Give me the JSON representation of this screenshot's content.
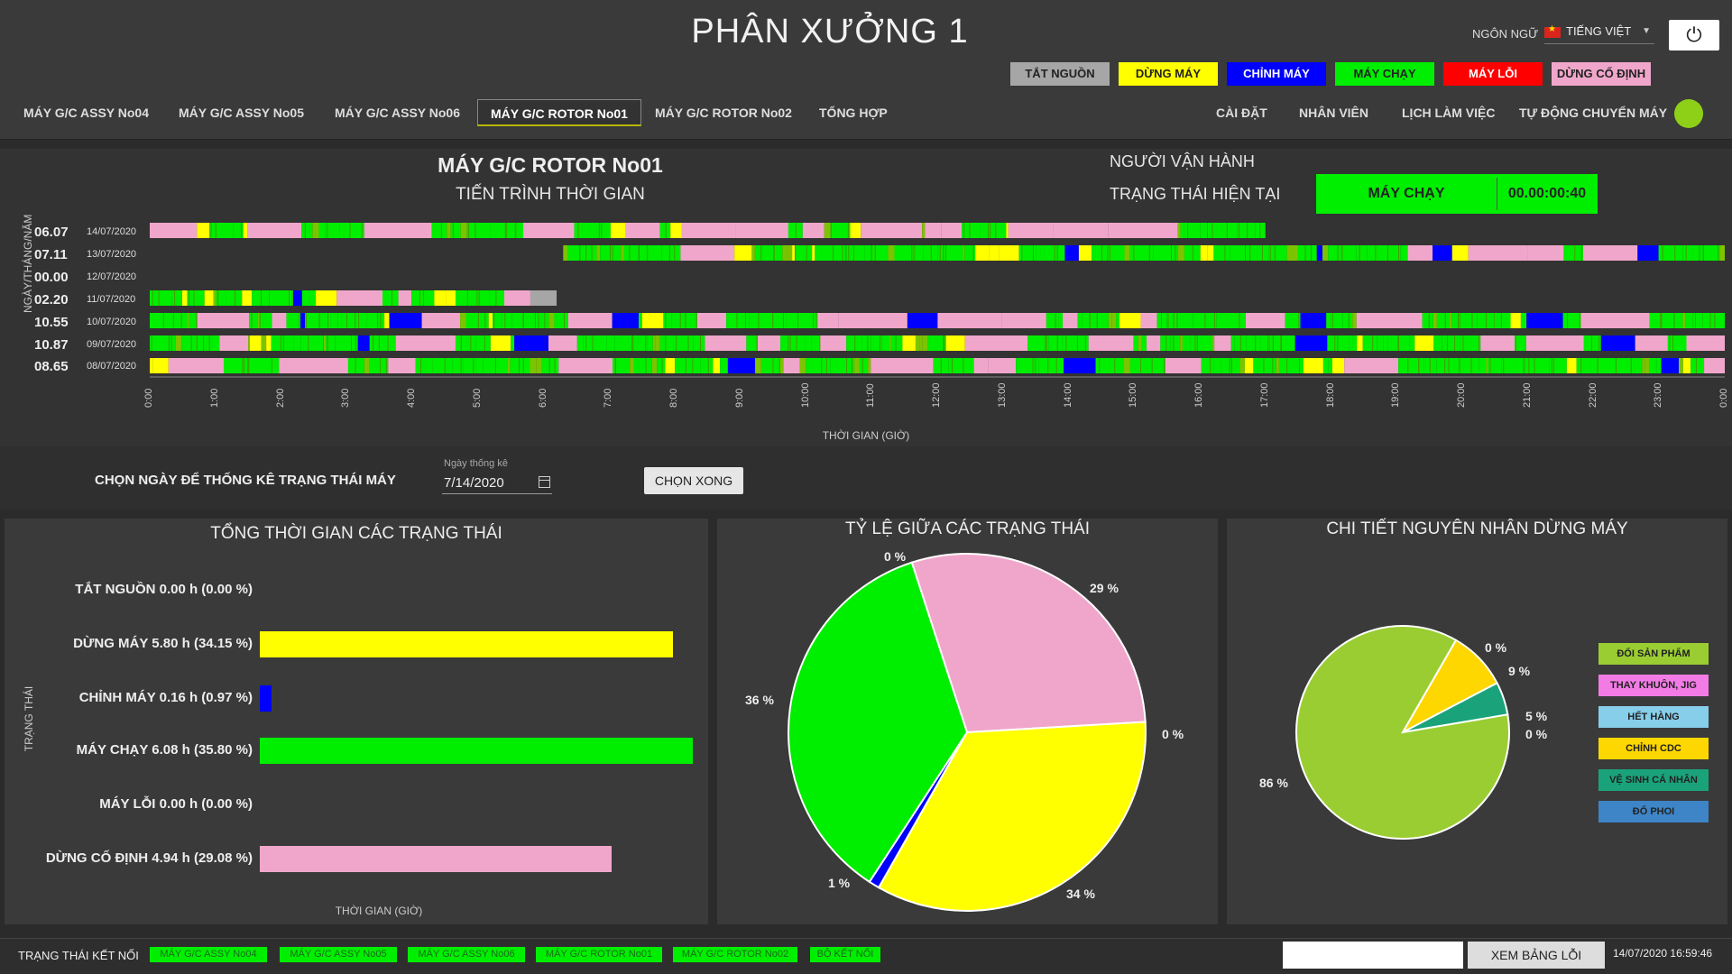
{
  "header": {
    "title": "PHÂN XƯỞNG 1",
    "language_label": "NGÔN NGỮ",
    "language_value": "TIẾNG VIỆT"
  },
  "legend": [
    {
      "label": "TẮT NGUỒN",
      "color": "#a6a6a6",
      "text_color": "#222222"
    },
    {
      "label": "DỪNG MÁY",
      "color": "#ffff00",
      "text_color": "#222222"
    },
    {
      "label": "CHỈNH MÁY",
      "color": "#0000ff",
      "text_color": "#ffffff"
    },
    {
      "label": "MÁY CHẠY",
      "color": "#00ee00",
      "text_color": "#222222"
    },
    {
      "label": "MÁY LỖI",
      "color": "#ff0000",
      "text_color": "#ffffff"
    },
    {
      "label": "DỪNG CỐ ĐỊNH",
      "color": "#f0a6ca",
      "text_color": "#222222"
    }
  ],
  "tabs": [
    {
      "label": "MÁY G/C ASSY No04",
      "active": false
    },
    {
      "label": "MÁY G/C ASSY No05",
      "active": false
    },
    {
      "label": "MÁY G/C ASSY No06",
      "active": false
    },
    {
      "label": "MÁY G/C ROTOR No01",
      "active": true
    },
    {
      "label": "MÁY G/C ROTOR No02",
      "active": false
    },
    {
      "label": "TỔNG HỢP",
      "active": false
    }
  ],
  "nav_right": [
    "CÀI ĐẶT",
    "NHÂN VIÊN",
    "LỊCH LÀM VIỆC",
    "TỰ ĐỘNG CHUYỂN MÁY"
  ],
  "machine": {
    "title": "MÁY G/C ROTOR No01",
    "timeline_title": "TIẾN TRÌNH THỜI GIAN",
    "operator_label": "NGƯỜI VẬN HÀNH",
    "current_status_label": "TRẠNG THÁI HIỆN TẠI",
    "current_status": "MÁY CHẠY",
    "current_timer": "00.00:00:40"
  },
  "timeline": {
    "y_axis_title": "NGÀY/THÁNG/NĂM",
    "x_axis_title": "THỜI GIAN (GIỜ)",
    "hour_ticks": [
      "0:00",
      "1:00",
      "2:00",
      "3:00",
      "4:00",
      "5:00",
      "6:00",
      "7:00",
      "8:00",
      "9:00",
      "10:00",
      "11:00",
      "12:00",
      "13:00",
      "14:00",
      "15:00",
      "16:00",
      "17:00",
      "18:00",
      "19:00",
      "20:00",
      "21:00",
      "22:00",
      "23:00",
      "0:00"
    ],
    "rows": [
      {
        "value": "06.07",
        "date": "14/07/2020",
        "start": 0.0,
        "end": 17.0
      },
      {
        "value": "07.11",
        "date": "13/07/2020",
        "start": 6.3,
        "end": 24.0
      },
      {
        "value": "00.00",
        "date": "12/07/2020",
        "start": 0.0,
        "end": 0.0
      },
      {
        "value": "02.20",
        "date": "11/07/2020",
        "start": 0.0,
        "end": 5.8
      },
      {
        "value": "10.55",
        "date": "10/07/2020",
        "start": 0.0,
        "end": 24.0
      },
      {
        "value": "10.87",
        "date": "09/07/2020",
        "start": 0.0,
        "end": 24.0
      },
      {
        "value": "08.65",
        "date": "08/07/2020",
        "start": 0.0,
        "end": 24.0
      }
    ]
  },
  "date_picker": {
    "label": "CHỌN NGÀY ĐỂ THỐNG KÊ TRẠNG THÁI MÁY",
    "caption": "Ngày thống kê",
    "value": "7/14/2020",
    "button": "CHỌN XONG"
  },
  "totals_panel": {
    "title": "TỔNG THỜI GIAN CÁC TRẠNG THÁI",
    "y_axis_title": "TRẠNG THÁI",
    "x_axis_title": "THỜI GIAN (GIỜ)",
    "bars": [
      {
        "label": "TẮT NGUỒN  0.00 h (0.00 %)",
        "hours": 0.0,
        "color": "#a6a6a6"
      },
      {
        "label": "DỪNG MÁY  5.80 h (34.15 %)",
        "hours": 5.8,
        "color": "#ffff00"
      },
      {
        "label": "CHỈNH MÁY  0.16 h (0.97 %)",
        "hours": 0.16,
        "color": "#0000ff"
      },
      {
        "label": "MÁY CHẠY  6.08 h (35.80 %)",
        "hours": 6.08,
        "color": "#00ee00"
      },
      {
        "label": "MÁY LỖI  0.00 h (0.00 %)",
        "hours": 0.0,
        "color": "#ff0000"
      },
      {
        "label": "DỪNG CỐ ĐỊNH  4.94 h (29.08 %)",
        "hours": 4.94,
        "color": "#f0a6ca"
      }
    ]
  },
  "ratio_panel": {
    "title": "TỶ LỆ GIỮA CÁC TRẠNG THÁI",
    "slices": [
      {
        "name": "DỪNG CỐ ĐỊNH",
        "value": 29.08,
        "label": "29 %",
        "color": "#f0a6ca"
      },
      {
        "name": "MÁY LỖI",
        "value": 0.0,
        "label": "0 %",
        "color": "#ff0000"
      },
      {
        "name": "DỪNG MÁY",
        "value": 34.15,
        "label": "34 %",
        "color": "#ffff00"
      },
      {
        "name": "CHỈNH MÁY",
        "value": 0.97,
        "label": "1 %",
        "color": "#0000ff"
      },
      {
        "name": "MÁY CHẠY",
        "value": 35.8,
        "label": "36 %",
        "color": "#00ee00"
      },
      {
        "name": "TẮT NGUỒN",
        "value": 0.0,
        "label": "0 %",
        "color": "#a6a6a6"
      }
    ]
  },
  "reasons_panel": {
    "title": "CHI TIẾT NGUYÊN NHÂN DỪNG MÁY",
    "slices": [
      {
        "name": "THAY KHUÔN, JIG",
        "value": 0.0,
        "label": "0 %",
        "color": "#f27be6"
      },
      {
        "name": "CHỈNH CDC",
        "value": 9.0,
        "label": "9 %",
        "color": "#ffd700"
      },
      {
        "name": "VỆ SINH CÁ NHÂN",
        "value": 5.0,
        "label": "5 %",
        "color": "#1aa37a"
      },
      {
        "name": "ĐỔ PHOI",
        "value": 0.0,
        "label": "0 %",
        "color": "#3d85c6"
      },
      {
        "name": "ĐỔI SẢN PHẨM",
        "value": 86.0,
        "label": "86 %",
        "color": "#9acd32"
      }
    ],
    "legend": [
      {
        "label": "ĐỔI SẢN PHẨM",
        "color": "#9acd32"
      },
      {
        "label": "THAY KHUÔN, JIG",
        "color": "#f27be6"
      },
      {
        "label": "HẾT HÀNG",
        "color": "#87ceeb"
      },
      {
        "label": "CHỈNH CDC",
        "color": "#ffd700"
      },
      {
        "label": "VỆ SINH CÁ NHÂN",
        "color": "#1aa37a"
      },
      {
        "label": "ĐỔ PHOI",
        "color": "#3d85c6"
      }
    ]
  },
  "footer": {
    "connection_label": "TRẠNG THÁI KẾT NỐI",
    "connections": [
      "MÁY G/C ASSY No04",
      "MÁY G/C ASSY No05",
      "MÁY G/C ASSY No06",
      "MÁY G/C ROTOR No01",
      "MÁY G/C ROTOR No02",
      "BỘ KẾT NỐI"
    ],
    "error_table_button": "XEM BẢNG LỖI",
    "datetime": "14/07/2020 16:59:46"
  }
}
